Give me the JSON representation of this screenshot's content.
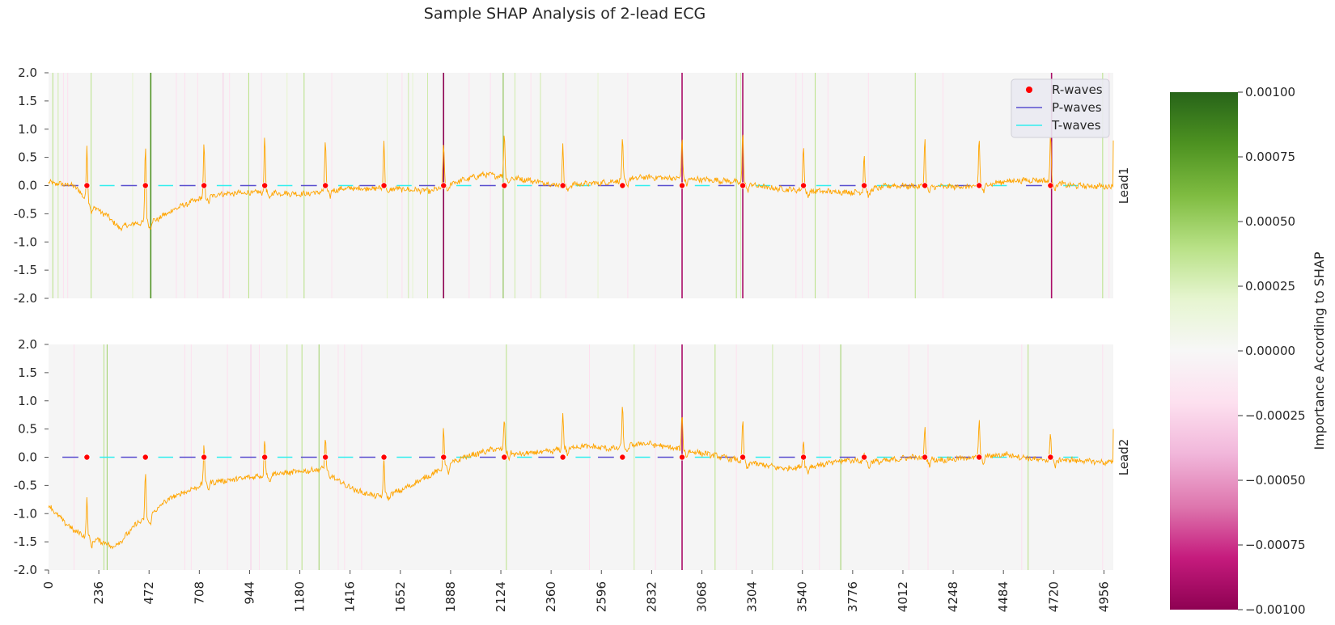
{
  "chart_data": {
    "type": "line",
    "title": "Sample SHAP Analysis of 2-lead ECG",
    "x_ticks": [
      0,
      236,
      472,
      708,
      944,
      1180,
      1416,
      1652,
      1888,
      2124,
      2360,
      2596,
      2832,
      3068,
      3304,
      3540,
      3776,
      4012,
      4248,
      4484,
      4720,
      4956
    ],
    "xlim": [
      0,
      5000
    ],
    "ylim": [
      -2.0,
      2.0
    ],
    "y_ticks": [
      "2.0",
      "1.5",
      "1.0",
      "0.5",
      "0.0",
      "-0.5",
      "-1.0",
      "-1.5",
      "-2.0"
    ],
    "legend": {
      "placement": "top-right",
      "entries": [
        {
          "label": "R-waves",
          "color": "#ff0000",
          "marker": "dot"
        },
        {
          "label": "P-waves",
          "color": "#5a4fcf",
          "marker": "line"
        },
        {
          "label": "T-waves",
          "color": "#33eeee",
          "marker": "line"
        }
      ]
    },
    "colorbar": {
      "label": "Importance According to SHAP",
      "range": [
        -0.001,
        0.001
      ],
      "ticks": [
        "0.00100",
        "0.00075",
        "0.00050",
        "0.00025",
        "0.00000",
        "−0.00025",
        "−0.00050",
        "−0.00075",
        "−0.00100"
      ],
      "colormap": "PiYG"
    },
    "r_wave_positions": [
      180,
      455,
      730,
      1015,
      1300,
      1575,
      1855,
      2140,
      2415,
      2695,
      2975,
      3260,
      3545,
      3830,
      4115,
      4370,
      4705
    ],
    "leads": [
      {
        "name": "Lead1",
        "signal_color": "#ffa500",
        "r_peak_heights": [
          0.72,
          0.72,
          0.75,
          0.85,
          0.82,
          0.85,
          0.75,
          0.97,
          0.72,
          0.8,
          0.87,
          0.95,
          0.75,
          0.55,
          0.85,
          0.85,
          0.9
        ],
        "baseline_keypoints": [
          [
            0,
            0.05
          ],
          [
            120,
            0.0
          ],
          [
            200,
            -0.35
          ],
          [
            280,
            -0.55
          ],
          [
            330,
            -0.75
          ],
          [
            400,
            -0.68
          ],
          [
            500,
            -0.62
          ],
          [
            600,
            -0.4
          ],
          [
            700,
            -0.25
          ],
          [
            800,
            -0.15
          ],
          [
            1000,
            -0.12
          ],
          [
            1200,
            -0.15
          ],
          [
            1400,
            -0.05
          ],
          [
            1600,
            -0.05
          ],
          [
            1800,
            -0.1
          ],
          [
            1900,
            0.05
          ],
          [
            2050,
            0.2
          ],
          [
            2250,
            0.1
          ],
          [
            2400,
            0.0
          ],
          [
            2600,
            0.05
          ],
          [
            2800,
            0.15
          ],
          [
            3000,
            0.12
          ],
          [
            3200,
            0.08
          ],
          [
            3400,
            -0.05
          ],
          [
            3600,
            -0.1
          ],
          [
            3800,
            -0.12
          ],
          [
            3950,
            0.0
          ],
          [
            4150,
            -0.02
          ],
          [
            4350,
            -0.02
          ],
          [
            4500,
            0.08
          ],
          [
            4650,
            0.1
          ],
          [
            4800,
            0.0
          ],
          [
            5000,
            -0.02
          ]
        ],
        "shap_bands": [
          {
            "x": 20,
            "v": 0.0004
          },
          {
            "x": 45,
            "v": 0.0003
          },
          {
            "x": 70,
            "v": -0.0002
          },
          {
            "x": 90,
            "v": -0.0002
          },
          {
            "x": 200,
            "v": 0.0004
          },
          {
            "x": 395,
            "v": 0.0002
          },
          {
            "x": 480,
            "v": 0.0008
          },
          {
            "x": 600,
            "v": -0.0002
          },
          {
            "x": 640,
            "v": -0.0002
          },
          {
            "x": 700,
            "v": -0.0002
          },
          {
            "x": 820,
            "v": -0.0003
          },
          {
            "x": 850,
            "v": -0.0002
          },
          {
            "x": 940,
            "v": 0.0004
          },
          {
            "x": 1000,
            "v": -0.0002
          },
          {
            "x": 1120,
            "v": 0.0002
          },
          {
            "x": 1200,
            "v": 0.0004
          },
          {
            "x": 1330,
            "v": -0.0002
          },
          {
            "x": 1590,
            "v": 0.0002
          },
          {
            "x": 1660,
            "v": -0.0002
          },
          {
            "x": 1690,
            "v": 0.0003
          },
          {
            "x": 1710,
            "v": 0.0002
          },
          {
            "x": 1780,
            "v": 0.0003
          },
          {
            "x": 1855,
            "v": -0.001
          },
          {
            "x": 1975,
            "v": -0.0002
          },
          {
            "x": 2075,
            "v": -0.0002
          },
          {
            "x": 2135,
            "v": 0.0006
          },
          {
            "x": 2190,
            "v": 0.0003
          },
          {
            "x": 2265,
            "v": -0.0002
          },
          {
            "x": 2310,
            "v": 0.0003
          },
          {
            "x": 2430,
            "v": -0.0002
          },
          {
            "x": 2580,
            "v": 0.0002
          },
          {
            "x": 2720,
            "v": -0.0002
          },
          {
            "x": 2975,
            "v": -0.0009
          },
          {
            "x": 3230,
            "v": 0.0004
          },
          {
            "x": 3250,
            "v": 0.0003
          },
          {
            "x": 3260,
            "v": -0.0009
          },
          {
            "x": 3510,
            "v": -0.0002
          },
          {
            "x": 3540,
            "v": -0.0002
          },
          {
            "x": 3600,
            "v": 0.0004
          },
          {
            "x": 3660,
            "v": -0.0002
          },
          {
            "x": 3850,
            "v": -0.0002
          },
          {
            "x": 4070,
            "v": 0.0004
          },
          {
            "x": 4200,
            "v": -0.0002
          },
          {
            "x": 4710,
            "v": -0.0009
          },
          {
            "x": 4950,
            "v": 0.0004
          },
          {
            "x": 4980,
            "v": -0.0002
          }
        ]
      },
      {
        "name": "Lead2",
        "signal_color": "#ffa500",
        "r_peak_heights": [
          -0.75,
          -0.3,
          0.25,
          0.35,
          0.35,
          0.0,
          0.5,
          0.7,
          0.8,
          0.88,
          0.8,
          0.65,
          0.35,
          0.1,
          0.55,
          0.65,
          0.45
        ],
        "baseline_keypoints": [
          [
            0,
            -0.85
          ],
          [
            60,
            -1.1
          ],
          [
            120,
            -1.3
          ],
          [
            200,
            -1.45
          ],
          [
            260,
            -1.5
          ],
          [
            300,
            -1.6
          ],
          [
            350,
            -1.45
          ],
          [
            420,
            -1.15
          ],
          [
            470,
            -1.1
          ],
          [
            500,
            -0.95
          ],
          [
            560,
            -0.75
          ],
          [
            650,
            -0.6
          ],
          [
            750,
            -0.45
          ],
          [
            900,
            -0.38
          ],
          [
            1050,
            -0.3
          ],
          [
            1200,
            -0.25
          ],
          [
            1300,
            -0.2
          ],
          [
            1350,
            -0.4
          ],
          [
            1450,
            -0.6
          ],
          [
            1550,
            -0.7
          ],
          [
            1650,
            -0.6
          ],
          [
            1750,
            -0.4
          ],
          [
            1850,
            -0.2
          ],
          [
            1950,
            0.0
          ],
          [
            2100,
            0.15
          ],
          [
            2200,
            0.05
          ],
          [
            2350,
            0.1
          ],
          [
            2500,
            0.2
          ],
          [
            2650,
            0.15
          ],
          [
            2800,
            0.25
          ],
          [
            2950,
            0.15
          ],
          [
            3100,
            0.05
          ],
          [
            3300,
            -0.1
          ],
          [
            3450,
            -0.2
          ],
          [
            3600,
            -0.15
          ],
          [
            3750,
            -0.05
          ],
          [
            3900,
            -0.08
          ],
          [
            4050,
            0.0
          ],
          [
            4200,
            -0.05
          ],
          [
            4350,
            0.0
          ],
          [
            4500,
            0.05
          ],
          [
            4650,
            -0.05
          ],
          [
            4800,
            -0.05
          ],
          [
            5000,
            -0.1
          ]
        ],
        "shap_bands": [
          {
            "x": 120,
            "v": -0.0002
          },
          {
            "x": 260,
            "v": 0.0004
          },
          {
            "x": 275,
            "v": 0.0005
          },
          {
            "x": 640,
            "v": -0.0002
          },
          {
            "x": 670,
            "v": -0.0002
          },
          {
            "x": 840,
            "v": -0.0002
          },
          {
            "x": 950,
            "v": -0.0003
          },
          {
            "x": 990,
            "v": -0.0002
          },
          {
            "x": 1120,
            "v": 0.0003
          },
          {
            "x": 1190,
            "v": 0.0004
          },
          {
            "x": 1270,
            "v": 0.0005
          },
          {
            "x": 1360,
            "v": -0.0002
          },
          {
            "x": 1390,
            "v": -0.0002
          },
          {
            "x": 1470,
            "v": -0.0002
          },
          {
            "x": 2150,
            "v": 0.0004
          },
          {
            "x": 2540,
            "v": -0.0002
          },
          {
            "x": 2750,
            "v": 0.0003
          },
          {
            "x": 2850,
            "v": -0.0002
          },
          {
            "x": 2975,
            "v": -0.0009
          },
          {
            "x": 3130,
            "v": 0.0004
          },
          {
            "x": 3230,
            "v": -0.0002
          },
          {
            "x": 3400,
            "v": 0.0003
          },
          {
            "x": 3540,
            "v": -0.0002
          },
          {
            "x": 3620,
            "v": -0.0002
          },
          {
            "x": 3720,
            "v": 0.0005
          },
          {
            "x": 4040,
            "v": -0.0002
          },
          {
            "x": 4130,
            "v": -0.0002
          },
          {
            "x": 4570,
            "v": -0.0002
          },
          {
            "x": 4600,
            "v": 0.0004
          },
          {
            "x": 4950,
            "v": -0.0002
          }
        ]
      }
    ]
  }
}
